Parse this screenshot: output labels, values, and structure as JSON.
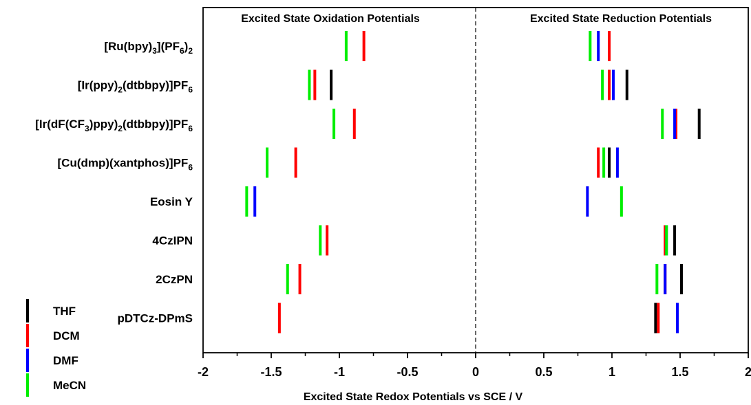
{
  "chart_data": {
    "type": "scatter",
    "xlabel": "Excited State Redox Potentials vs SCE / V",
    "xlim": [
      -2,
      2
    ],
    "xticks": [
      "-2",
      "-1.5",
      "-1",
      "-0.5",
      "0",
      "0.5",
      "1",
      "1.5",
      "2"
    ],
    "panel_titles": {
      "left": "Excited State Oxidation Potentials",
      "right": "Excited State Reduction Potentials"
    },
    "divider_x": 0,
    "legend_placement": "bottom-left",
    "categories": [
      {
        "pre": "[Ru(bpy)",
        "s1": "3",
        "mid": "](PF",
        "s2": "6",
        "post": ")",
        "s3": "2",
        "end": ""
      },
      {
        "pre": "[Ir(ppy)",
        "s1": "2",
        "mid": "(dtbbpy)]PF",
        "s2": "6",
        "post": "",
        "s3": "",
        "end": ""
      },
      {
        "pre": "[Ir(dF(CF",
        "s1": "3",
        "mid": ")ppy)",
        "s2": "2",
        "post": "(dtbbpy)]PF",
        "s3": "6",
        "end": ""
      },
      {
        "pre": "[Cu(dmp)(xantphos)]PF",
        "s1": "6",
        "mid": "",
        "s2": "",
        "post": "",
        "s3": "",
        "end": ""
      },
      {
        "pre": "Eosin Y",
        "s1": "",
        "mid": "",
        "s2": "",
        "post": "",
        "s3": "",
        "end": ""
      },
      {
        "pre": "4CzIPN",
        "s1": "",
        "mid": "",
        "s2": "",
        "post": "",
        "s3": "",
        "end": ""
      },
      {
        "pre": "2CzPN",
        "s1": "",
        "mid": "",
        "s2": "",
        "post": "",
        "s3": "",
        "end": ""
      },
      {
        "pre": "pDTCz-DPmS",
        "s1": "",
        "mid": "",
        "s2": "",
        "post": "",
        "s3": "",
        "end": ""
      }
    ],
    "series": [
      {
        "name": "THF",
        "color": "#000000",
        "oxidation": [
          null,
          -1.06,
          null,
          null,
          null,
          null,
          null,
          null
        ],
        "reduction": [
          null,
          1.11,
          1.64,
          0.98,
          null,
          1.46,
          1.51,
          1.32
        ]
      },
      {
        "name": "DCM",
        "color": "#ff0000",
        "oxidation": [
          -0.82,
          -1.18,
          -0.89,
          -1.32,
          null,
          -1.09,
          -1.29,
          -1.44
        ],
        "reduction": [
          0.98,
          0.98,
          1.47,
          0.9,
          null,
          1.39,
          1.39,
          1.34
        ]
      },
      {
        "name": "DMF",
        "color": "#0000ff",
        "oxidation": [
          null,
          null,
          null,
          null,
          -1.62,
          null,
          null,
          null
        ],
        "reduction": [
          0.9,
          1.01,
          1.46,
          1.04,
          0.82,
          1.4,
          1.39,
          1.48
        ]
      },
      {
        "name": "MeCN",
        "color": "#00ee00",
        "oxidation": [
          -0.95,
          -1.22,
          -1.04,
          -1.53,
          -1.68,
          -1.14,
          -1.38,
          null
        ],
        "reduction": [
          0.84,
          0.93,
          1.37,
          0.94,
          1.07,
          1.4,
          1.33,
          null
        ]
      }
    ]
  }
}
